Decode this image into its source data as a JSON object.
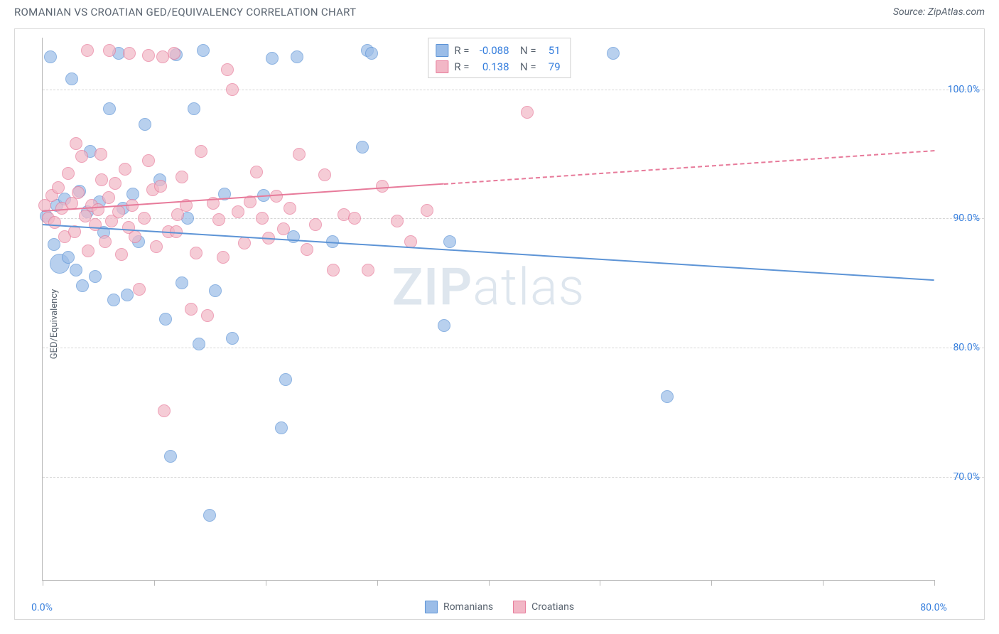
{
  "title": "ROMANIAN VS CROATIAN GED/EQUIVALENCY CORRELATION CHART",
  "source": "Source: ZipAtlas.com",
  "ylabel": "GED/Equivalency",
  "watermark_bold": "ZIP",
  "watermark_light": "atlas",
  "chart": {
    "type": "scatter",
    "xlim": [
      0,
      80
    ],
    "ylim": [
      62,
      104
    ],
    "xticks": [
      0,
      10,
      20,
      30,
      40,
      50,
      60,
      70,
      80
    ],
    "xticklabels": {
      "0": "0.0%",
      "80": "80.0%"
    },
    "yticks": [
      70,
      80,
      90,
      100
    ],
    "yticklabels": {
      "70": "70.0%",
      "80": "80.0%",
      "90": "90.0%",
      "100": "100.0%"
    },
    "grid_color": "#d5d5d5",
    "background_color": "#ffffff",
    "point_radius": 9,
    "point_stroke_width": 1.2,
    "point_fill_opacity": 0.35,
    "series": [
      {
        "name": "Romanians",
        "color_fill": "#9bbde8",
        "color_stroke": "#5d94d6",
        "R": "-0.088",
        "N": "51",
        "trend": {
          "x1": 0,
          "y1": 89.6,
          "x2": 80,
          "y2": 85.3,
          "dash_from_x": null,
          "width": 2.2
        },
        "points": [
          [
            0.3,
            90.2
          ],
          [
            0.7,
            102.5
          ],
          [
            1.0,
            88.0
          ],
          [
            1.3,
            91.0
          ],
          [
            1.5,
            86.5,
            14
          ],
          [
            2.0,
            91.5
          ],
          [
            2.3,
            87.0
          ],
          [
            2.6,
            100.8
          ],
          [
            3.0,
            86.0
          ],
          [
            3.3,
            92.1
          ],
          [
            3.6,
            84.8
          ],
          [
            4.0,
            90.5
          ],
          [
            4.3,
            95.2
          ],
          [
            4.7,
            85.5
          ],
          [
            5.1,
            91.3
          ],
          [
            5.5,
            88.9
          ],
          [
            6.0,
            98.5
          ],
          [
            6.4,
            83.7
          ],
          [
            6.8,
            102.8
          ],
          [
            7.2,
            90.8
          ],
          [
            7.6,
            84.1
          ],
          [
            8.1,
            91.9
          ],
          [
            8.6,
            88.2
          ],
          [
            9.2,
            97.3
          ],
          [
            10.5,
            93.0
          ],
          [
            11.0,
            82.2
          ],
          [
            11.5,
            71.6
          ],
          [
            12.0,
            102.7
          ],
          [
            12.5,
            85.0
          ],
          [
            13.0,
            90.0
          ],
          [
            13.6,
            98.5
          ],
          [
            14.0,
            80.3
          ],
          [
            14.4,
            103.0
          ],
          [
            15.0,
            67.0
          ],
          [
            15.5,
            84.4
          ],
          [
            16.3,
            91.9
          ],
          [
            17.0,
            80.7
          ],
          [
            19.8,
            91.8
          ],
          [
            20.6,
            102.4
          ],
          [
            21.4,
            73.8
          ],
          [
            21.8,
            77.5
          ],
          [
            22.5,
            88.6
          ],
          [
            22.8,
            102.5
          ],
          [
            26.0,
            88.2
          ],
          [
            28.7,
            95.5
          ],
          [
            29.1,
            103.0
          ],
          [
            36.0,
            81.7
          ],
          [
            36.5,
            88.2
          ],
          [
            51.2,
            102.8
          ],
          [
            56.0,
            76.2
          ],
          [
            29.5,
            102.8
          ]
        ]
      },
      {
        "name": "Croatians",
        "color_fill": "#f2b7c6",
        "color_stroke": "#e77a9a",
        "R": "0.138",
        "N": "79",
        "trend": {
          "x1": 0,
          "y1": 90.6,
          "x2": 80,
          "y2": 95.3,
          "dash_from_x": 36,
          "width": 2.0
        },
        "points": [
          [
            0.2,
            91.0
          ],
          [
            0.5,
            90.0
          ],
          [
            0.8,
            91.8
          ],
          [
            1.1,
            89.7
          ],
          [
            1.4,
            92.4
          ],
          [
            1.7,
            90.8
          ],
          [
            2.0,
            88.6
          ],
          [
            2.3,
            93.5
          ],
          [
            2.6,
            91.2
          ],
          [
            2.9,
            89.0
          ],
          [
            3.2,
            92.0
          ],
          [
            3.5,
            94.8
          ],
          [
            3.8,
            90.2
          ],
          [
            4.1,
            87.5
          ],
          [
            4.4,
            91.0
          ],
          [
            4.7,
            89.5
          ],
          [
            5.0,
            90.7
          ],
          [
            5.3,
            93.0
          ],
          [
            5.6,
            88.2
          ],
          [
            5.9,
            91.6
          ],
          [
            6.2,
            89.8
          ],
          [
            6.5,
            92.7
          ],
          [
            6.8,
            90.5
          ],
          [
            7.1,
            87.2
          ],
          [
            7.4,
            93.8
          ],
          [
            7.7,
            89.3
          ],
          [
            8.0,
            91.0
          ],
          [
            8.3,
            88.6
          ],
          [
            8.7,
            84.5
          ],
          [
            9.1,
            90.0
          ],
          [
            9.5,
            94.5
          ],
          [
            9.9,
            92.2
          ],
          [
            10.2,
            87.8
          ],
          [
            10.6,
            92.5
          ],
          [
            10.9,
            75.1
          ],
          [
            11.3,
            89.0
          ],
          [
            11.8,
            102.8
          ],
          [
            12.1,
            90.3
          ],
          [
            12.5,
            93.2
          ],
          [
            12.9,
            91.0
          ],
          [
            13.3,
            83.0
          ],
          [
            13.8,
            87.3
          ],
          [
            14.2,
            95.2
          ],
          [
            14.8,
            82.5
          ],
          [
            15.3,
            91.2
          ],
          [
            15.8,
            89.9
          ],
          [
            16.2,
            87.0
          ],
          [
            16.6,
            101.5
          ],
          [
            17.0,
            100.0
          ],
          [
            17.5,
            90.5
          ],
          [
            18.1,
            88.1
          ],
          [
            18.6,
            91.3
          ],
          [
            19.2,
            93.6
          ],
          [
            19.7,
            90.0
          ],
          [
            20.3,
            88.5
          ],
          [
            21.0,
            91.7
          ],
          [
            21.6,
            89.2
          ],
          [
            22.2,
            90.8
          ],
          [
            23.0,
            95.0
          ],
          [
            23.7,
            87.6
          ],
          [
            24.5,
            89.5
          ],
          [
            25.3,
            93.4
          ],
          [
            26.1,
            86.0
          ],
          [
            27.0,
            90.3
          ],
          [
            28.0,
            90.0
          ],
          [
            29.2,
            86.0
          ],
          [
            30.5,
            92.5
          ],
          [
            31.8,
            89.8
          ],
          [
            33.0,
            88.2
          ],
          [
            34.5,
            90.6
          ],
          [
            9.5,
            102.6
          ],
          [
            10.8,
            102.5
          ],
          [
            12.0,
            89.0
          ],
          [
            5.2,
            95.0
          ],
          [
            3.0,
            95.8
          ],
          [
            4.0,
            103.0
          ],
          [
            43.5,
            98.2
          ],
          [
            6.0,
            103.0
          ],
          [
            7.8,
            102.8
          ]
        ]
      }
    ]
  },
  "legend": {
    "rows": [
      {
        "swatch": "#9bbde8",
        "stroke": "#5d94d6",
        "label": "Romanians"
      },
      {
        "swatch": "#f2b7c6",
        "stroke": "#e77a9a",
        "label": "Croatians"
      }
    ]
  }
}
